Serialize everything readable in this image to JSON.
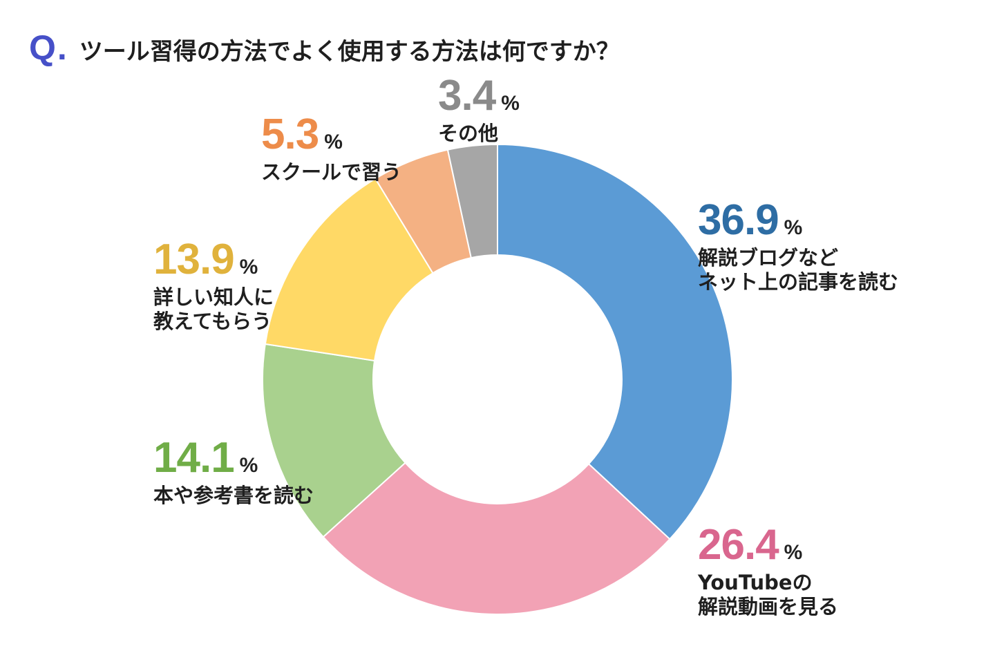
{
  "header": {
    "q_mark": "Q.",
    "question": "ツール習得の方法でよく使用する方法は何ですか？"
  },
  "chart_data": {
    "type": "pie",
    "variant": "donut",
    "title": "ツール習得の方法でよく使用する方法は何ですか？",
    "unit": "%",
    "slices": [
      {
        "label_lines": [
          "解説ブログなど",
          "ネット上の記事を読む"
        ],
        "value": 36.9,
        "display": "36.9",
        "color": "#5b9bd5",
        "text_color": "#2e6da4"
      },
      {
        "label_lines": [
          "YouTubeの",
          "解説動画を見る"
        ],
        "value": 26.4,
        "display": "26.4",
        "color": "#f2a2b5",
        "text_color": "#d9668e"
      },
      {
        "label_lines": [
          "本や参考書を読む"
        ],
        "value": 14.1,
        "display": "14.1",
        "color": "#a9d18e",
        "text_color": "#70ad47"
      },
      {
        "label_lines": [
          "詳しい知人に",
          "教えてもらう"
        ],
        "value": 13.9,
        "display": "13.9",
        "color": "#ffd966",
        "text_color": "#e0b23c"
      },
      {
        "label_lines": [
          "スクールで習う"
        ],
        "value": 5.3,
        "display": "5.3",
        "color": "#f4b183",
        "text_color": "#ed8c4a"
      },
      {
        "label_lines": [
          "その他"
        ],
        "value": 3.4,
        "display": "3.4",
        "color": "#a6a6a6",
        "text_color": "#8a8a8a"
      }
    ]
  }
}
